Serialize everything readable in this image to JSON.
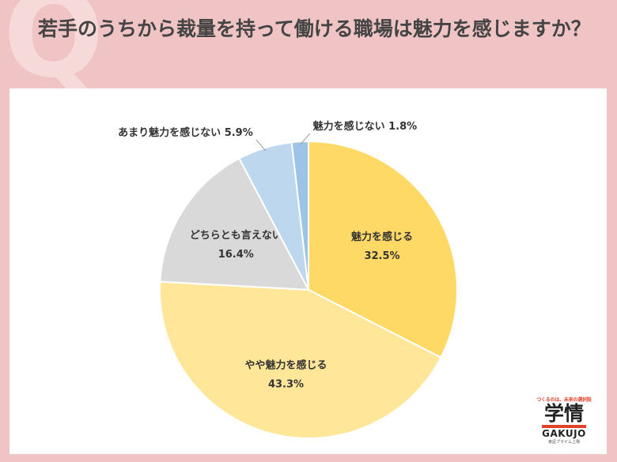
{
  "title": "若手のうちから裁量を持って働ける職場は魅力を感じますか？",
  "logo": {
    "tagline": "つくるのは、未来の選択肢",
    "main": "学情",
    "english": "GAKUJO",
    "sub": "東証プライム上場"
  },
  "colors": {
    "page_bg": "#f0c4c4",
    "panel_bg": "#ffffff"
  },
  "chart_data": {
    "type": "pie",
    "slices": [
      {
        "label": "魅力を感じる",
        "percent_label": "32.5%",
        "value": 32.5,
        "color": "#ffd966"
      },
      {
        "label": "やや魅力を感じる",
        "percent_label": "43.3%",
        "value": 43.3,
        "color": "#ffe699"
      },
      {
        "label": "どちらとも言えない",
        "percent_label": "16.4%",
        "value": 16.4,
        "color": "#d9d9d9"
      },
      {
        "label": "あまり魅力を感じない",
        "percent_label": "5.9%",
        "value": 5.9,
        "color": "#bdd7ee"
      },
      {
        "label": "魅力を感じない",
        "percent_label": "1.8%",
        "value": 1.8,
        "color": "#9dc3e6"
      }
    ]
  }
}
